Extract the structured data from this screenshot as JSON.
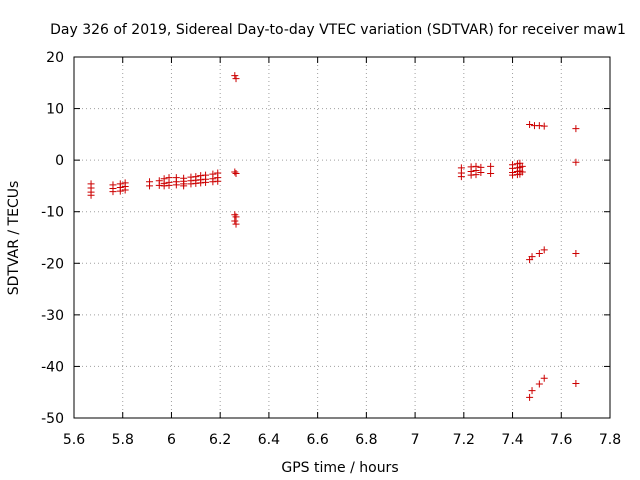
{
  "chart_data": {
    "type": "scatter",
    "title": "Day 326 of 2019, Sidereal Day-to-day VTEC variation (SDTVAR) for receiver maw1",
    "xlabel": "GPS time / hours",
    "ylabel": "SDTVAR / TECUs",
    "xlim": [
      5.6,
      7.8
    ],
    "ylim": [
      -50,
      20
    ],
    "xticks": [
      5.6,
      5.8,
      6,
      6.2,
      6.4,
      6.6,
      6.8,
      7,
      7.2,
      7.4,
      7.6,
      7.8
    ],
    "xtick_labels": [
      "5.6",
      "5.8",
      "6",
      "6.2",
      "6.4",
      "6.6",
      "6.8",
      "7",
      "7.2",
      "7.4",
      "7.6",
      "7.8"
    ],
    "yticks": [
      -50,
      -40,
      -30,
      -20,
      -10,
      0,
      10,
      20
    ],
    "ytick_labels": [
      "-50",
      "-40",
      "-30",
      "-20",
      "-10",
      "0",
      "10",
      "20"
    ],
    "grid": true,
    "marker": "+",
    "color": "#cc0000",
    "points": [
      [
        5.67,
        -4.6
      ],
      [
        5.67,
        -5.4
      ],
      [
        5.67,
        -6.2
      ],
      [
        5.67,
        -6.8
      ],
      [
        5.76,
        -4.8
      ],
      [
        5.76,
        -5.5
      ],
      [
        5.76,
        -6.1
      ],
      [
        5.79,
        -4.6
      ],
      [
        5.79,
        -5.3
      ],
      [
        5.79,
        -6.0
      ],
      [
        5.81,
        -4.4
      ],
      [
        5.81,
        -5.1
      ],
      [
        5.81,
        -5.8
      ],
      [
        5.91,
        -4.2
      ],
      [
        5.91,
        -5.0
      ],
      [
        5.95,
        -4.0
      ],
      [
        5.95,
        -4.9
      ],
      [
        5.97,
        -3.6
      ],
      [
        5.97,
        -4.5
      ],
      [
        5.97,
        -5.0
      ],
      [
        5.99,
        -3.4
      ],
      [
        5.99,
        -4.3
      ],
      [
        5.99,
        -4.9
      ],
      [
        6.02,
        -3.4
      ],
      [
        6.02,
        -4.2
      ],
      [
        6.02,
        -4.8
      ],
      [
        6.05,
        -3.5
      ],
      [
        6.05,
        -4.1
      ],
      [
        6.05,
        -4.6
      ],
      [
        6.05,
        -5.0
      ],
      [
        6.08,
        -3.3
      ],
      [
        6.08,
        -4.0
      ],
      [
        6.08,
        -4.6
      ],
      [
        6.1,
        -3.2
      ],
      [
        6.1,
        -3.9
      ],
      [
        6.1,
        -4.5
      ],
      [
        6.12,
        -3.0
      ],
      [
        6.12,
        -3.8
      ],
      [
        6.12,
        -4.4
      ],
      [
        6.14,
        -2.9
      ],
      [
        6.14,
        -3.7
      ],
      [
        6.14,
        -4.3
      ],
      [
        6.17,
        -2.7
      ],
      [
        6.17,
        -3.6
      ],
      [
        6.17,
        -4.2
      ],
      [
        6.19,
        -2.5
      ],
      [
        6.19,
        -3.4
      ],
      [
        6.19,
        -4.1
      ],
      [
        6.26,
        16.4
      ],
      [
        6.265,
        15.8
      ],
      [
        6.26,
        -2.3
      ],
      [
        6.265,
        -2.6
      ],
      [
        6.26,
        -10.6
      ],
      [
        6.265,
        -11.0
      ],
      [
        6.26,
        -11.8
      ],
      [
        6.265,
        -12.4
      ],
      [
        7.19,
        -1.5
      ],
      [
        7.19,
        -2.5
      ],
      [
        7.19,
        -3.2
      ],
      [
        7.23,
        -1.3
      ],
      [
        7.23,
        -2.2
      ],
      [
        7.23,
        -2.9
      ],
      [
        7.25,
        -1.2
      ],
      [
        7.25,
        -2.0
      ],
      [
        7.25,
        -2.8
      ],
      [
        7.27,
        -1.4
      ],
      [
        7.27,
        -2.4
      ],
      [
        7.31,
        -1.2
      ],
      [
        7.31,
        -2.6
      ],
      [
        7.4,
        -0.9
      ],
      [
        7.4,
        -1.6
      ],
      [
        7.4,
        -2.4
      ],
      [
        7.4,
        -2.9
      ],
      [
        7.42,
        -0.7
      ],
      [
        7.42,
        -1.5
      ],
      [
        7.42,
        -2.2
      ],
      [
        7.42,
        -2.8
      ],
      [
        7.43,
        -0.6
      ],
      [
        7.43,
        -1.4
      ],
      [
        7.43,
        -2.1
      ],
      [
        7.43,
        -2.7
      ],
      [
        7.44,
        -1.2
      ],
      [
        7.44,
        -2.3
      ],
      [
        7.47,
        6.9
      ],
      [
        7.49,
        6.7
      ],
      [
        7.51,
        6.7
      ],
      [
        7.53,
        6.6
      ],
      [
        7.66,
        6.1
      ],
      [
        7.66,
        -0.4
      ],
      [
        7.47,
        -19.3
      ],
      [
        7.48,
        -18.7
      ],
      [
        7.51,
        -18.1
      ],
      [
        7.53,
        -17.4
      ],
      [
        7.66,
        -18.1
      ],
      [
        7.47,
        -46.0
      ],
      [
        7.48,
        -44.7
      ],
      [
        7.51,
        -43.4
      ],
      [
        7.53,
        -42.3
      ],
      [
        7.66,
        -43.3
      ]
    ]
  }
}
